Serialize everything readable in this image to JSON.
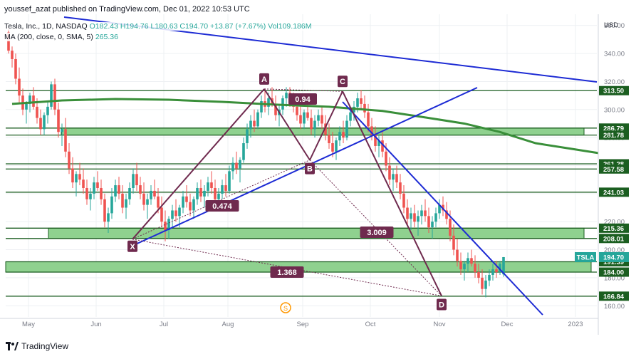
{
  "header": {
    "published_line": "youssef_azat published on TradingView.com, Dec 01, 2022 10:53 UTC"
  },
  "legend": {
    "symbol": "Tesla, Inc., 1D, NASDAQ",
    "open": "O182.43",
    "high": "H194.76",
    "low": "L180.63",
    "close": "C194.70",
    "change": "+13.87 (+7.67%)",
    "volume": "Vol109.186M",
    "ma_label": "MA (200, close, 0, SMA, 5)",
    "ma_value": "265.36"
  },
  "footer": {
    "brand": "TradingView",
    "logo_text": "17"
  },
  "colors": {
    "up": "#26a69a",
    "down": "#ef5350",
    "harmonic": "#6f2a4e",
    "trendline": "#1d2bd4",
    "level": "#1b5e20",
    "zone_fill": "#8fd18f",
    "ma": "#3a8f3a"
  },
  "chart_data": {
    "type": "candlestick",
    "currency": "USD",
    "ylim": [
      152,
      368
    ],
    "y_ticks": [
      160,
      180,
      200,
      220,
      240,
      260,
      280,
      300,
      320,
      340,
      360
    ],
    "x_ticks": [
      "May",
      "Jun",
      "Jul",
      "Aug",
      "Sep",
      "Oct",
      "Nov",
      "Dec",
      "2023"
    ],
    "grid": true,
    "levels": [
      313.5,
      286.79,
      281.78,
      261.28,
      257.58,
      241.03,
      215.36,
      208.01,
      191.39,
      184.0,
      166.84
    ],
    "level_labels": [
      "313.50",
      "286.79",
      "281.78",
      "261.28",
      "257.58",
      "241.03",
      "215.36",
      "208.01",
      "191.39",
      "184.00",
      "166.84"
    ],
    "zones": [
      [
        281.78,
        286.79
      ],
      [
        208.01,
        215.36
      ],
      [
        184.0,
        191.39
      ]
    ],
    "last_price": {
      "symbol": "TSLA",
      "value": "194.70"
    },
    "pattern_points": [
      {
        "label": "X",
        "date": "Jun 16",
        "price": 207.5
      },
      {
        "label": "A",
        "date": "Aug 16",
        "price": 314.7
      },
      {
        "label": "B",
        "date": "Sep 06",
        "price": 264.0
      },
      {
        "label": "C",
        "date": "Sep 21",
        "price": 313.0
      },
      {
        "label": "D",
        "date": "Nov 09",
        "price": 167.0
      }
    ],
    "ratios": [
      {
        "label": "0.94",
        "from": "A",
        "to": "C"
      },
      {
        "label": "0.474",
        "from": "X",
        "to": "B"
      },
      {
        "label": "3.009",
        "from": "B",
        "to": "D"
      },
      {
        "label": "1.368",
        "from": "X",
        "to": "D"
      }
    ],
    "ma_series_name": "MA (200, close, 0, SMA, 5)",
    "ma_points": [
      [
        1,
        304
      ],
      [
        15,
        306.5
      ],
      [
        30,
        307.5
      ],
      [
        45,
        307
      ],
      [
        60,
        305.5
      ],
      [
        75,
        303.5
      ],
      [
        90,
        302
      ],
      [
        105,
        299
      ],
      [
        118,
        294
      ],
      [
        128,
        290
      ],
      [
        138,
        284
      ],
      [
        148,
        276
      ],
      [
        158,
        272
      ],
      [
        168,
        268
      ],
      [
        174,
        265.4
      ]
    ],
    "candles": [
      [
        0,
        355,
        358,
        340,
        342
      ],
      [
        1,
        342,
        345,
        330,
        336
      ],
      [
        2,
        336,
        340,
        318,
        322
      ],
      [
        3,
        322,
        330,
        305,
        310
      ],
      [
        4,
        310,
        315,
        296,
        300
      ],
      [
        5,
        300,
        306,
        290,
        304
      ],
      [
        6,
        304,
        312,
        298,
        310
      ],
      [
        7,
        310,
        316,
        300,
        302
      ],
      [
        8,
        302,
        308,
        290,
        294
      ],
      [
        9,
        294,
        300,
        282,
        286
      ],
      [
        10,
        286,
        298,
        282,
        296
      ],
      [
        11,
        296,
        306,
        290,
        302
      ],
      [
        12,
        302,
        320,
        300,
        318
      ],
      [
        13,
        318,
        322,
        296,
        300
      ],
      [
        14,
        300,
        305,
        280,
        284
      ],
      [
        15,
        284,
        290,
        274,
        286
      ],
      [
        16,
        286,
        294,
        266,
        270
      ],
      [
        17,
        270,
        276,
        254,
        258
      ],
      [
        18,
        258,
        266,
        244,
        248
      ],
      [
        19,
        248,
        256,
        238,
        254
      ],
      [
        20,
        254,
        262,
        246,
        250
      ],
      [
        21,
        250,
        258,
        240,
        244
      ],
      [
        22,
        244,
        250,
        232,
        236
      ],
      [
        23,
        236,
        244,
        228,
        240
      ],
      [
        24,
        240,
        252,
        236,
        248
      ],
      [
        25,
        248,
        256,
        242,
        244
      ],
      [
        26,
        244,
        250,
        232,
        236
      ],
      [
        27,
        236,
        240,
        216,
        220
      ],
      [
        28,
        220,
        230,
        212,
        226
      ],
      [
        29,
        226,
        244,
        222,
        238
      ],
      [
        30,
        238,
        250,
        234,
        246
      ],
      [
        31,
        246,
        252,
        236,
        240
      ],
      [
        32,
        240,
        246,
        226,
        230
      ],
      [
        33,
        230,
        240,
        222,
        236
      ],
      [
        34,
        236,
        248,
        232,
        244
      ],
      [
        35,
        244,
        258,
        240,
        254
      ],
      [
        36,
        254,
        262,
        242,
        246
      ],
      [
        37,
        246,
        252,
        236,
        240
      ],
      [
        38,
        240,
        248,
        228,
        232
      ],
      [
        39,
        232,
        240,
        222,
        236
      ],
      [
        40,
        236,
        246,
        232,
        242
      ],
      [
        41,
        242,
        250,
        236,
        238
      ],
      [
        42,
        238,
        244,
        226,
        230
      ],
      [
        43,
        230,
        238,
        216,
        220
      ],
      [
        44,
        220,
        228,
        206,
        214
      ],
      [
        45,
        214,
        224,
        208,
        222
      ],
      [
        46,
        222,
        232,
        216,
        228
      ],
      [
        47,
        228,
        236,
        220,
        224
      ],
      [
        48,
        224,
        232,
        216,
        230
      ],
      [
        49,
        230,
        242,
        226,
        238
      ],
      [
        50,
        238,
        246,
        230,
        234
      ],
      [
        51,
        234,
        240,
        224,
        228
      ],
      [
        52,
        228,
        238,
        222,
        236
      ],
      [
        53,
        236,
        248,
        232,
        244
      ],
      [
        54,
        244,
        250,
        234,
        238
      ],
      [
        55,
        238,
        246,
        230,
        242
      ],
      [
        56,
        242,
        252,
        238,
        248
      ],
      [
        57,
        248,
        256,
        240,
        244
      ],
      [
        58,
        244,
        250,
        232,
        236
      ],
      [
        59,
        236,
        244,
        228,
        240
      ],
      [
        60,
        240,
        250,
        236,
        246
      ],
      [
        61,
        246,
        254,
        238,
        242
      ],
      [
        62,
        242,
        260,
        240,
        256
      ],
      [
        63,
        256,
        266,
        250,
        262
      ],
      [
        64,
        262,
        270,
        254,
        258
      ],
      [
        65,
        258,
        266,
        248,
        264
      ],
      [
        66,
        264,
        280,
        262,
        276
      ],
      [
        67,
        276,
        290,
        272,
        286
      ],
      [
        68,
        286,
        296,
        280,
        292
      ],
      [
        69,
        292,
        300,
        284,
        288
      ],
      [
        70,
        288,
        300,
        286,
        298
      ],
      [
        71,
        298,
        310,
        294,
        306
      ],
      [
        72,
        306,
        314,
        298,
        302
      ],
      [
        73,
        302,
        312,
        296,
        308
      ],
      [
        74,
        308,
        316,
        302,
        304
      ],
      [
        75,
        304,
        310,
        292,
        296
      ],
      [
        76,
        296,
        304,
        288,
        300
      ],
      [
        77,
        300,
        310,
        296,
        308
      ],
      [
        78,
        308,
        316,
        302,
        312
      ],
      [
        79,
        312,
        316,
        302,
        306
      ],
      [
        80,
        306,
        312,
        298,
        302
      ],
      [
        81,
        302,
        308,
        292,
        296
      ],
      [
        82,
        296,
        304,
        286,
        290
      ],
      [
        83,
        290,
        300,
        286,
        298
      ],
      [
        84,
        298,
        306,
        292,
        294
      ],
      [
        85,
        294,
        300,
        282,
        286
      ],
      [
        86,
        286,
        296,
        280,
        292
      ],
      [
        87,
        292,
        300,
        288,
        296
      ],
      [
        88,
        296,
        302,
        286,
        290
      ],
      [
        89,
        290,
        296,
        278,
        282
      ],
      [
        90,
        282,
        290,
        272,
        276
      ],
      [
        91,
        276,
        284,
        266,
        270
      ],
      [
        92,
        270,
        280,
        264,
        278
      ],
      [
        93,
        278,
        288,
        274,
        284
      ],
      [
        94,
        284,
        292,
        276,
        280
      ],
      [
        95,
        280,
        296,
        278,
        292
      ],
      [
        96,
        292,
        302,
        288,
        298
      ],
      [
        97,
        298,
        306,
        292,
        302
      ],
      [
        98,
        302,
        312,
        298,
        308
      ],
      [
        99,
        308,
        314,
        300,
        304
      ],
      [
        100,
        304,
        310,
        294,
        298
      ],
      [
        101,
        298,
        304,
        284,
        288
      ],
      [
        102,
        288,
        294,
        278,
        282
      ],
      [
        103,
        282,
        288,
        270,
        274
      ],
      [
        104,
        274,
        282,
        266,
        278
      ],
      [
        105,
        278,
        284,
        266,
        270
      ],
      [
        106,
        270,
        276,
        256,
        260
      ],
      [
        107,
        260,
        266,
        246,
        250
      ],
      [
        108,
        250,
        258,
        242,
        254
      ],
      [
        109,
        254,
        260,
        244,
        248
      ],
      [
        110,
        248,
        254,
        236,
        240
      ],
      [
        111,
        240,
        246,
        226,
        230
      ],
      [
        112,
        230,
        236,
        218,
        222
      ],
      [
        113,
        222,
        230,
        214,
        226
      ],
      [
        114,
        226,
        232,
        216,
        220
      ],
      [
        115,
        220,
        228,
        210,
        224
      ],
      [
        116,
        224,
        232,
        218,
        228
      ],
      [
        117,
        228,
        236,
        220,
        224
      ],
      [
        118,
        224,
        230,
        212,
        216
      ],
      [
        119,
        216,
        224,
        208,
        220
      ],
      [
        120,
        220,
        230,
        216,
        226
      ],
      [
        121,
        226,
        236,
        222,
        232
      ],
      [
        122,
        232,
        238,
        224,
        228
      ],
      [
        123,
        228,
        234,
        218,
        222
      ],
      [
        124,
        222,
        228,
        206,
        210
      ],
      [
        125,
        210,
        218,
        196,
        200
      ],
      [
        126,
        200,
        208,
        188,
        192
      ],
      [
        127,
        192,
        198,
        182,
        186
      ],
      [
        128,
        186,
        192,
        178,
        190
      ],
      [
        129,
        190,
        198,
        184,
        194
      ],
      [
        130,
        194,
        200,
        188,
        190
      ],
      [
        131,
        190,
        196,
        180,
        184
      ],
      [
        132,
        184,
        190,
        176,
        180
      ],
      [
        133,
        180,
        186,
        168,
        172
      ],
      [
        134,
        172,
        182,
        166,
        178
      ],
      [
        135,
        178,
        186,
        174,
        182
      ],
      [
        136,
        182,
        190,
        178,
        186
      ],
      [
        137,
        186,
        192,
        180,
        184
      ],
      [
        138,
        184,
        192,
        182,
        190
      ],
      [
        139,
        182.43,
        194.76,
        180.63,
        194.7
      ]
    ]
  }
}
